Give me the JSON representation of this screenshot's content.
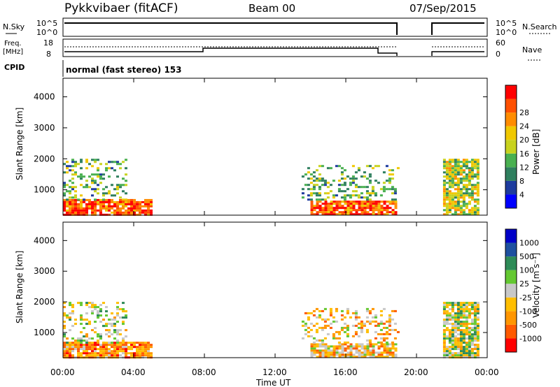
{
  "header": {
    "station": "Pykkvibaer (fitACF)",
    "beam": "Beam 00",
    "date": "07/Sep/2015"
  },
  "strips": {
    "nsky_label": "N.Sky",
    "nsky_ticks": [
      "10^5",
      "10^0"
    ],
    "nsearch_label": "N.Search",
    "nsearch_ticks": [
      "10^5",
      "10^0"
    ],
    "freq_label_1": "Freq.",
    "freq_label_2": "[MHz]",
    "freq_ticks": [
      "18",
      "8"
    ],
    "nave_label": "Nave",
    "nave_ticks": [
      "60",
      "0"
    ],
    "cpid_label": "CPID",
    "cpid_text": "normal (fast stereo) 153"
  },
  "colors": {
    "power": [
      "#0000ff",
      "#1e3c9e",
      "#2f7f5e",
      "#49b050",
      "#c8d21e",
      "#f0c800",
      "#ff8c00",
      "#ff5000",
      "#ff0000"
    ],
    "velocity": [
      "#ff0000",
      "#ff5a00",
      "#ff9600",
      "#ffbe00",
      "#c8c8c8",
      "#64c832",
      "#2e8b57",
      "#1e50a0",
      "#0000c8"
    ]
  },
  "chart_data": [
    {
      "type": "heatmap",
      "parameter": "Power",
      "ylabel": "Slant Range [km]",
      "xlabel": "Time UT",
      "x_ticks": [
        "00:00",
        "04:00",
        "08:00",
        "12:00",
        "16:00",
        "20:00",
        "00:00"
      ],
      "y_ticks": [
        "1000",
        "2000",
        "3000",
        "4000"
      ],
      "xlim_hours": [
        0,
        24
      ],
      "ylim_km": [
        180,
        4600
      ],
      "colorbar_label": "Power [dB]",
      "colorbar_ticks": [
        "4",
        "8",
        "12",
        "16",
        "20",
        "24",
        "28"
      ],
      "data_gap_hours": [
        19.0,
        21.0
      ],
      "regions": [
        {
          "t": [
            0.0,
            5.0
          ],
          "range_km": [
            180,
            700
          ],
          "level": 7
        },
        {
          "t": [
            0.0,
            3.5
          ],
          "range_km": [
            700,
            2000
          ],
          "level": 3
        },
        {
          "t": [
            14.0,
            18.8
          ],
          "range_km": [
            180,
            650
          ],
          "level": 7
        },
        {
          "t": [
            13.5,
            19.0
          ],
          "range_km": [
            650,
            1800
          ],
          "level": 3
        },
        {
          "t": [
            21.5,
            23.5
          ],
          "range_km": [
            180,
            2000
          ],
          "level": 4
        }
      ]
    },
    {
      "type": "heatmap",
      "parameter": "Velocity",
      "ylabel": "Slant Range [km]",
      "xlabel": "Time UT",
      "x_ticks": [
        "00:00",
        "04:00",
        "08:00",
        "12:00",
        "16:00",
        "20:00",
        "00:00"
      ],
      "y_ticks": [
        "1000",
        "2000",
        "3000",
        "4000"
      ],
      "xlim_hours": [
        0,
        24
      ],
      "ylim_km": [
        180,
        4600
      ],
      "colorbar_label": "Velocity [m s⁻¹]",
      "colorbar_ticks": [
        "1000",
        "500",
        "100",
        "25",
        "-25",
        "-100",
        "-500",
        "-1000"
      ],
      "data_gap_hours": [
        19.0,
        21.0
      ],
      "regions": [
        {
          "t": [
            0.0,
            5.0
          ],
          "range_km": [
            180,
            700
          ],
          "level": 2
        },
        {
          "t": [
            0.0,
            3.5
          ],
          "range_km": [
            700,
            2000
          ],
          "level": 4
        },
        {
          "t": [
            14.0,
            18.8
          ],
          "range_km": [
            180,
            650
          ],
          "level": 3
        },
        {
          "t": [
            13.5,
            19.0
          ],
          "range_km": [
            650,
            1800
          ],
          "level": 3
        },
        {
          "t": [
            21.5,
            23.5
          ],
          "range_km": [
            180,
            2000
          ],
          "level": 4
        }
      ]
    }
  ]
}
